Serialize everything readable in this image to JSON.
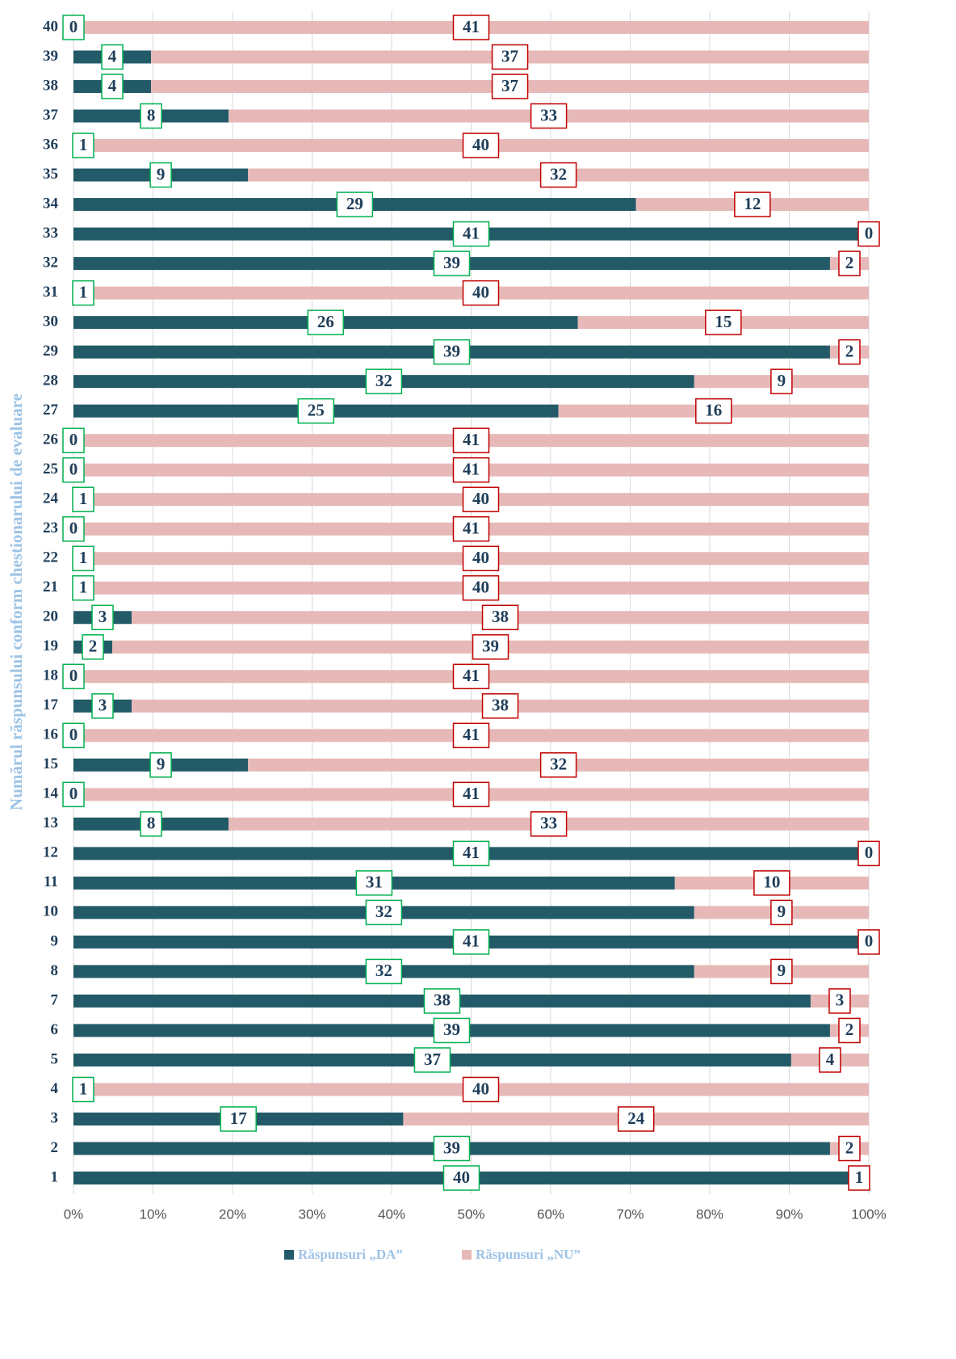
{
  "chart_data": {
    "type": "bar",
    "orientation": "horizontal",
    "stack": "percent",
    "y_axis_label": "Numărul răspunsului conform chestionarului de evaluare",
    "categories": [
      "1",
      "2",
      "3",
      "4",
      "5",
      "6",
      "7",
      "8",
      "9",
      "10",
      "11",
      "12",
      "13",
      "14",
      "15",
      "16",
      "17",
      "18",
      "19",
      "20",
      "21",
      "22",
      "23",
      "24",
      "25",
      "26",
      "27",
      "28",
      "29",
      "30",
      "31",
      "32",
      "33",
      "34",
      "35",
      "36",
      "37",
      "38",
      "39",
      "40"
    ],
    "series": [
      {
        "name": "Răspunsuri „DA”",
        "color": "#235a68",
        "label_border": "#00b050",
        "values": [
          40,
          39,
          17,
          1,
          37,
          39,
          38,
          32,
          41,
          32,
          31,
          41,
          8,
          0,
          9,
          0,
          3,
          0,
          2,
          3,
          1,
          1,
          0,
          1,
          0,
          0,
          25,
          32,
          39,
          26,
          1,
          39,
          41,
          29,
          9,
          1,
          8,
          4,
          4,
          0
        ]
      },
      {
        "name": "Răspunsuri „NU”",
        "color": "#e6b9b8",
        "label_border": "#c00000",
        "values": [
          1,
          2,
          24,
          40,
          4,
          2,
          3,
          9,
          0,
          9,
          10,
          0,
          33,
          41,
          32,
          41,
          38,
          41,
          39,
          38,
          40,
          40,
          41,
          40,
          41,
          41,
          16,
          9,
          2,
          15,
          40,
          2,
          0,
          12,
          32,
          40,
          33,
          37,
          37,
          41
        ]
      }
    ],
    "xlim": [
      0,
      100
    ],
    "xticks": [
      {
        "value": 0,
        "label": "0%"
      },
      {
        "value": 10,
        "label": "10%"
      },
      {
        "value": 20,
        "label": "20%"
      },
      {
        "value": 30,
        "label": "30%"
      },
      {
        "value": 40,
        "label": "40%"
      },
      {
        "value": 50,
        "label": "50%"
      },
      {
        "value": 60,
        "label": "60%"
      },
      {
        "value": 70,
        "label": "70%"
      },
      {
        "value": 80,
        "label": "80%"
      },
      {
        "value": 90,
        "label": "90%"
      },
      {
        "value": 100,
        "label": "100%"
      }
    ],
    "grid": true,
    "legend": "bottom"
  }
}
